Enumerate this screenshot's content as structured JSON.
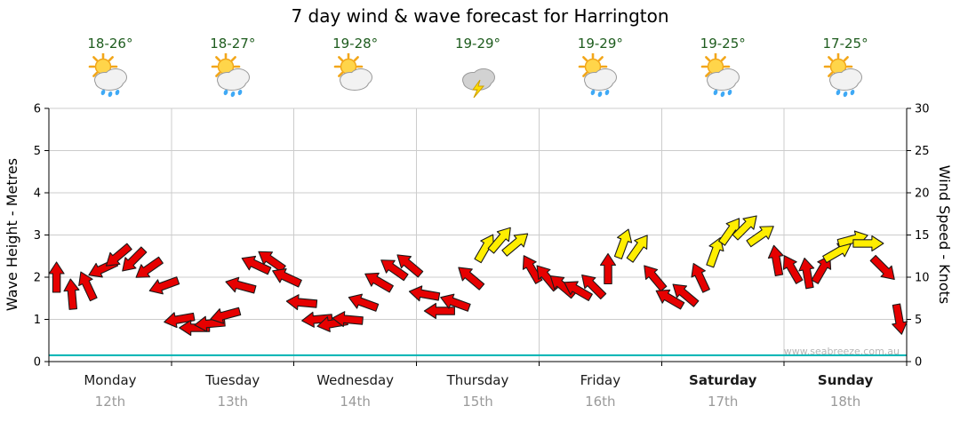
{
  "title": "7 day wind & wave forecast for Harrington",
  "watermark": "www.seabreeze.com.au",
  "colors": {
    "arrow_red": "#e60000",
    "arrow_yellow": "#ffee00",
    "arrow_outline": "#1a1a1a",
    "grid": "#cccccc",
    "axis": "#000000",
    "temp_text": "#1e5c1e",
    "date_text": "#9a9a9a",
    "wave_line": "#00b2b2",
    "watermark_text": "#b5b5b5"
  },
  "days": [
    {
      "name": "Monday",
      "date": "12th",
      "temp": "18-26°",
      "icon": "sun-cloud-rain",
      "bold": false
    },
    {
      "name": "Tuesday",
      "date": "13th",
      "temp": "18-27°",
      "icon": "sun-cloud-rain",
      "bold": false
    },
    {
      "name": "Wednesday",
      "date": "14th",
      "temp": "19-28°",
      "icon": "sun-cloud",
      "bold": false
    },
    {
      "name": "Thursday",
      "date": "15th",
      "temp": "19-29°",
      "icon": "storm",
      "bold": false
    },
    {
      "name": "Friday",
      "date": "16th",
      "temp": "19-29°",
      "icon": "sun-cloud-rain",
      "bold": false
    },
    {
      "name": "Saturday",
      "date": "17th",
      "temp": "19-25°",
      "icon": "sun-cloud-rain",
      "bold": true
    },
    {
      "name": "Sunday",
      "date": "18th",
      "temp": "17-25°",
      "icon": "sun-cloud-rain",
      "bold": true
    }
  ],
  "axes": {
    "left_label": "Wave Height - Metres",
    "right_label": "Wind Speed - Knots",
    "left_ticks": [
      0,
      1,
      2,
      3,
      4,
      5,
      6
    ],
    "right_ticks": [
      0,
      5,
      10,
      15,
      20,
      25,
      30
    ],
    "left_max": 6,
    "right_max": 30
  },
  "chart_data": {
    "type": "wind-arrow-series",
    "x_unit": "3-hourly slots across 7 days (8 per day)",
    "slots_per_day": 8,
    "wave_axis_range_m": [
      0,
      6
    ],
    "wind_axis_range_knots": [
      0,
      30
    ],
    "yellow_threshold_knots": 13,
    "wave_height_m_flat": 0.15,
    "wind_knots": [
      10,
      8,
      9,
      11,
      12.5,
      12,
      11,
      9,
      5,
      4,
      4.5,
      5.5,
      9,
      11.5,
      12,
      10,
      7,
      5,
      4.5,
      5,
      7,
      9.5,
      11,
      11.5,
      8,
      6,
      7,
      10,
      13.5,
      14.5,
      14,
      11,
      10,
      9,
      8.5,
      9,
      11,
      14,
      13.5,
      10,
      7.5,
      8,
      10,
      13,
      15.5,
      16,
      15,
      12,
      11,
      10.5,
      11,
      13,
      14.5,
      14,
      11,
      5
    ],
    "wind_dir_deg": [
      -90,
      -95,
      -115,
      155,
      140,
      135,
      145,
      160,
      170,
      180,
      175,
      165,
      -165,
      -155,
      -145,
      -155,
      185,
      175,
      170,
      -175,
      -160,
      -150,
      -145,
      -140,
      -170,
      180,
      -160,
      -140,
      -60,
      -50,
      -40,
      -120,
      -130,
      -140,
      -150,
      -135,
      -90,
      -70,
      -55,
      -130,
      -150,
      -140,
      -115,
      -70,
      -55,
      -45,
      -35,
      -100,
      -120,
      -100,
      -60,
      -30,
      -15,
      0,
      45,
      80
    ]
  }
}
